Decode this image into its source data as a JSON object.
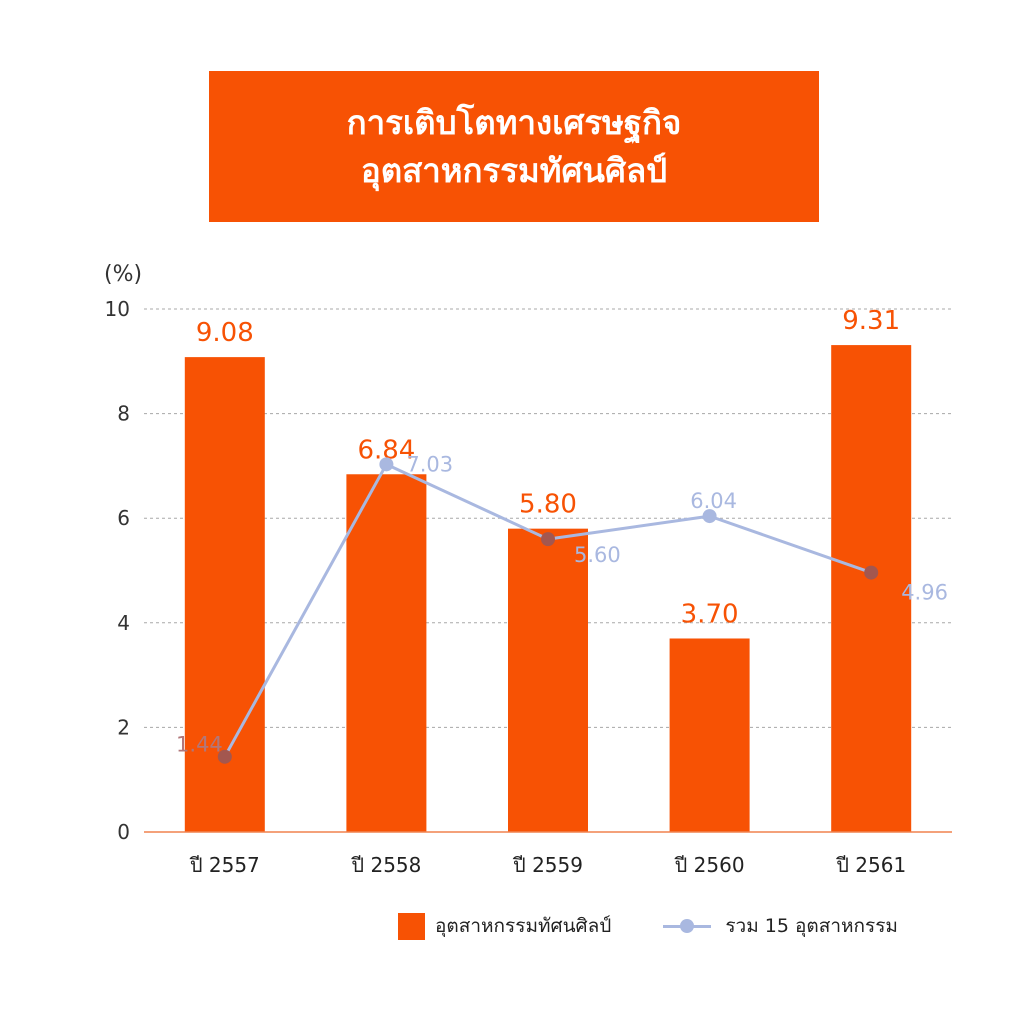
{
  "title": {
    "line1": "การเติบโตทางเศรษฐกิจ",
    "line2": "อุตสาหกรรมทัศนศิลป์"
  },
  "chart_data": {
    "type": "bar",
    "categories": [
      "ปี 2557",
      "ปี 2558",
      "ปี 2559",
      "ปี 2560",
      "ปี 2561"
    ],
    "series": [
      {
        "name": "อุตสาหกรรมทัศนศิลป์",
        "kind": "bar",
        "color": "#f75204",
        "values": [
          9.08,
          6.84,
          5.8,
          3.7,
          9.31
        ],
        "labels": [
          "9.08",
          "6.84",
          "5.80",
          "3.70",
          "9.31"
        ]
      },
      {
        "name": "รวม 15 อุตสาหกรรม",
        "kind": "line",
        "color": "#a9b8e0",
        "values": [
          1.44,
          7.03,
          5.6,
          6.04,
          4.96
        ],
        "labels": [
          "1.44",
          "7.03",
          "5.60",
          "6.04",
          "4.96"
        ]
      }
    ],
    "ylabel": "(%)",
    "ylim": [
      0,
      10
    ],
    "yticks": [
      "0",
      "2",
      "4",
      "6",
      "8",
      "10"
    ],
    "grid": true,
    "legend_position": "bottom"
  },
  "colors": {
    "accent": "#f75204",
    "line": "#a9b8e0",
    "marker_on_bar": "#a3574f",
    "line_label_on_bar": "#b1777a"
  }
}
